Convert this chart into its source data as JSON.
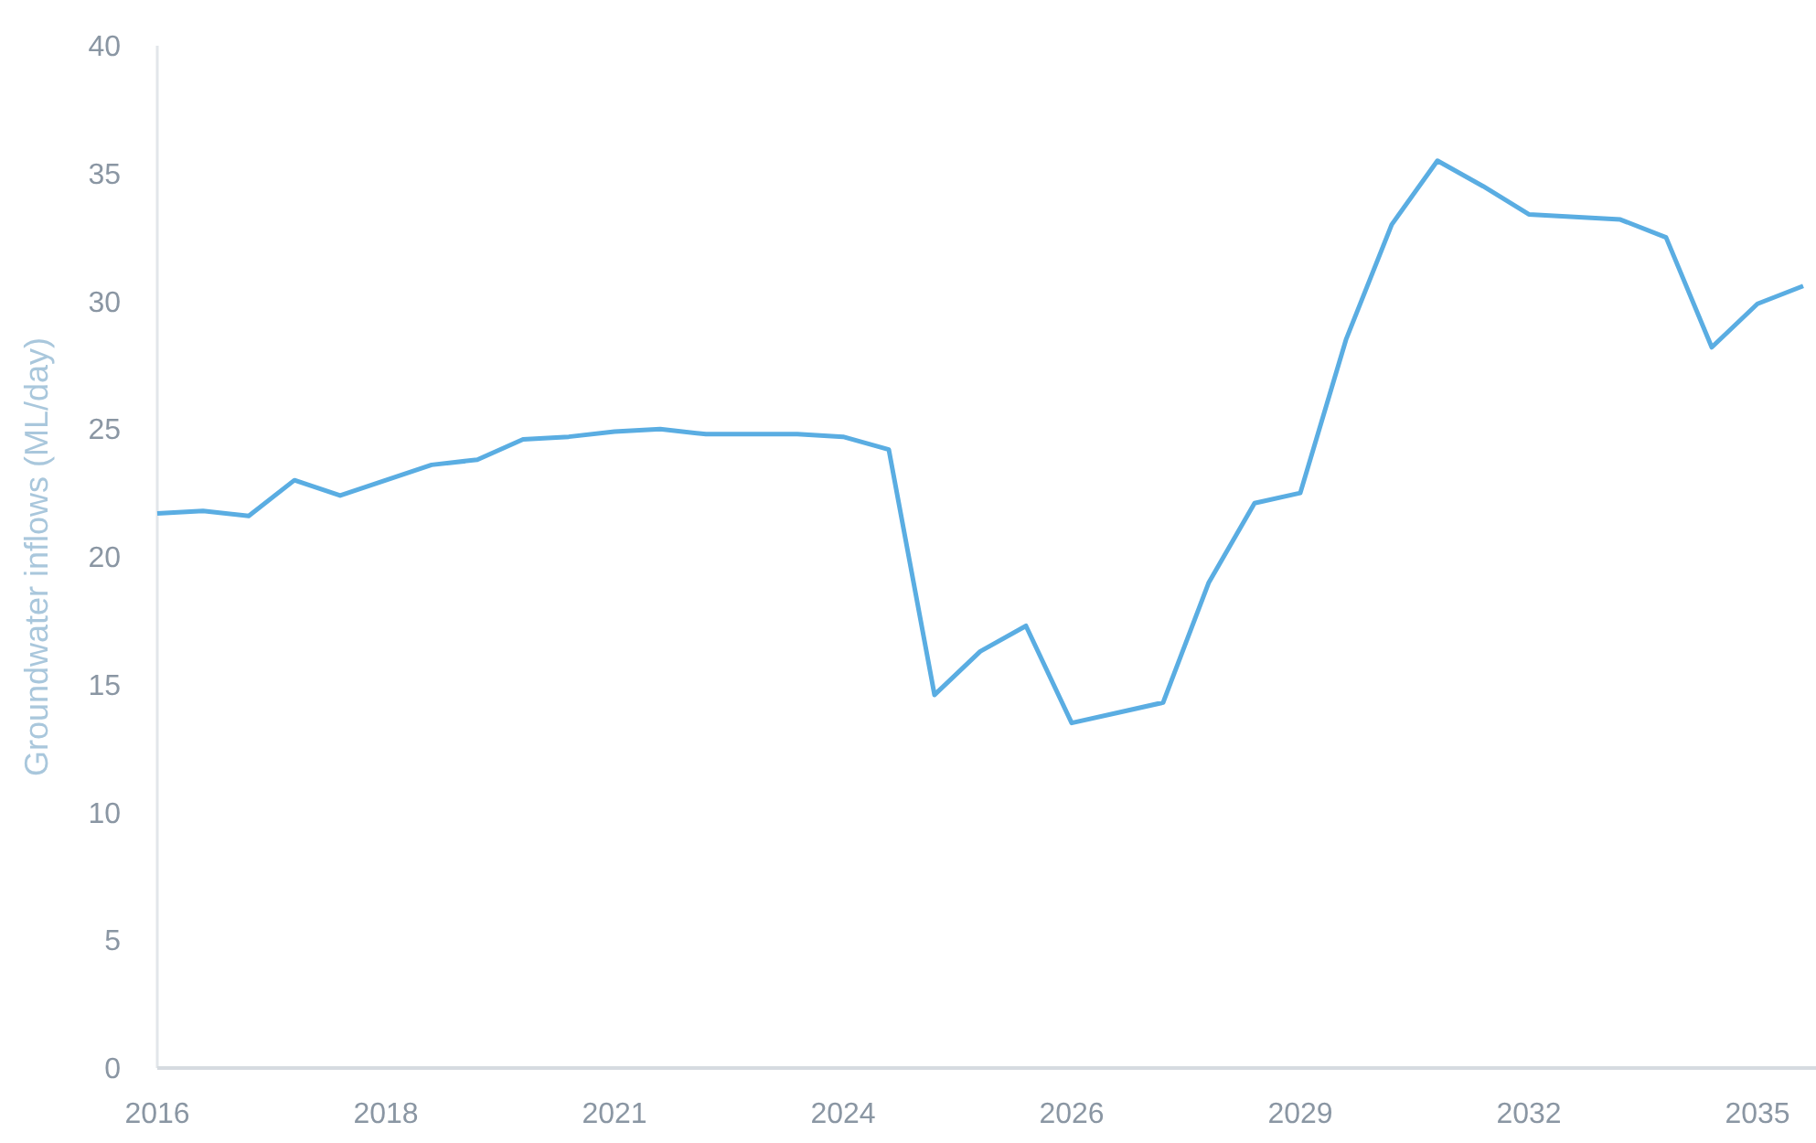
{
  "chart_data": {
    "type": "line",
    "ylabel": "Groundwater inflows (ML/day)",
    "categories": [
      "2016",
      null,
      null,
      null,
      null,
      "2018",
      null,
      null,
      null,
      null,
      "2021",
      null,
      null,
      null,
      null,
      "2024",
      null,
      null,
      null,
      null,
      "2026",
      null,
      null,
      null,
      null,
      "2029",
      null,
      null,
      null,
      null,
      "2032",
      null,
      null,
      null,
      null,
      "2035",
      null
    ],
    "series": [
      {
        "color": "#5aade2",
        "values": [
          21.7,
          21.8,
          21.6,
          23.0,
          22.4,
          23.0,
          23.6,
          23.8,
          24.6,
          24.7,
          24.9,
          25.0,
          24.8,
          24.8,
          24.8,
          24.7,
          24.2,
          14.6,
          16.3,
          17.3,
          13.5,
          13.9,
          14.3,
          19.0,
          22.1,
          22.5,
          28.5,
          33.0,
          35.5,
          34.5,
          33.4,
          33.3,
          33.2,
          32.5,
          28.2,
          29.9,
          30.6
        ]
      }
    ],
    "ylim": [
      0,
      40
    ],
    "yticks": [
      0,
      5,
      10,
      15,
      20,
      25,
      30,
      35,
      40
    ],
    "marker": "none",
    "line_style": "solid"
  }
}
